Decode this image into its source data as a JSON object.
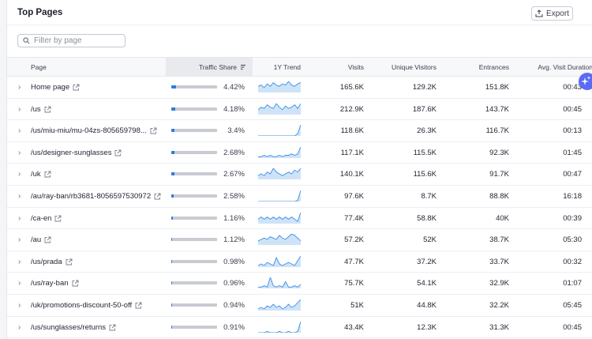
{
  "header": {
    "title": "Top Pages",
    "export_label": "Export"
  },
  "filter": {
    "placeholder": "Filter by page"
  },
  "columns": {
    "page": "Page",
    "traffic_share": "Traffic Share",
    "trend": "1Y Trend",
    "visits": "Visits",
    "unique_visitors": "Unique Visitors",
    "entrances": "Entrances",
    "avg_visit_duration": "Avg. Visit Duration"
  },
  "rows": [
    {
      "page": "Home page",
      "share": "4.42%",
      "share_value": 4.42,
      "visits": "165.6K",
      "unique": "129.2K",
      "entrances": "151.8K",
      "duration": "00:43",
      "trend": [
        5,
        6,
        4,
        7,
        5,
        8,
        6,
        5,
        7,
        6,
        9,
        6,
        5,
        7,
        8
      ]
    },
    {
      "page": "/us",
      "share": "4.18%",
      "share_value": 4.18,
      "visits": "212.9K",
      "unique": "187.6K",
      "entrances": "143.7K",
      "duration": "00:45",
      "trend": [
        4,
        6,
        5,
        8,
        6,
        5,
        9,
        6,
        4,
        7,
        5,
        6,
        8,
        5,
        9
      ]
    },
    {
      "page": "/us/miu-miu/mu-04zs-805659798...",
      "share": "3.4%",
      "share_value": 3.4,
      "visits": "118.6K",
      "unique": "26.3K",
      "entrances": "116.7K",
      "duration": "00:13",
      "trend": [
        0,
        0,
        0,
        0,
        0,
        0,
        0,
        0,
        0,
        0,
        0,
        0,
        0,
        2,
        10
      ]
    },
    {
      "page": "/us/designer-sunglasses",
      "share": "2.68%",
      "share_value": 2.68,
      "visits": "117.1K",
      "unique": "115.5K",
      "entrances": "92.3K",
      "duration": "01:45",
      "trend": [
        1,
        1,
        2,
        1,
        2,
        1,
        1,
        2,
        1,
        2,
        2,
        3,
        2,
        3,
        8
      ]
    },
    {
      "page": "/uk",
      "share": "2.67%",
      "share_value": 2.67,
      "visits": "140.1K",
      "unique": "115.6K",
      "entrances": "91.7K",
      "duration": "00:47",
      "trend": [
        2,
        3,
        2,
        4,
        3,
        6,
        4,
        3,
        2,
        3,
        4,
        3,
        5,
        4,
        6
      ]
    },
    {
      "page": "/au/ray-ban/rb3681-8056597530972",
      "share": "2.58%",
      "share_value": 2.58,
      "visits": "97.6K",
      "unique": "8.7K",
      "entrances": "88.8K",
      "duration": "16:18",
      "trend": [
        0,
        0,
        0,
        0,
        0,
        0,
        0,
        0,
        0,
        0,
        0,
        0,
        0,
        1,
        10
      ]
    },
    {
      "page": "/ca-en",
      "share": "1.16%",
      "share_value": 1.16,
      "visits": "77.4K",
      "unique": "58.8K",
      "entrances": "40K",
      "duration": "00:39",
      "trend": [
        2,
        3,
        2,
        3,
        2,
        3,
        2,
        3,
        2,
        3,
        2,
        3,
        2,
        1,
        5
      ]
    },
    {
      "page": "/au",
      "share": "1.12%",
      "share_value": 1.12,
      "visits": "57.2K",
      "unique": "52K",
      "entrances": "38.7K",
      "duration": "05:30",
      "trend": [
        3,
        4,
        5,
        4,
        6,
        5,
        4,
        7,
        5,
        4,
        6,
        8,
        7,
        5,
        3
      ]
    },
    {
      "page": "/us/prada",
      "share": "0.98%",
      "share_value": 0.98,
      "visits": "47.7K",
      "unique": "37.2K",
      "entrances": "33.7K",
      "duration": "00:32",
      "trend": [
        1,
        2,
        1,
        3,
        2,
        1,
        6,
        2,
        1,
        2,
        3,
        2,
        1,
        4,
        7
      ]
    },
    {
      "page": "/us/ray-ban",
      "share": "0.96%",
      "share_value": 0.96,
      "visits": "75.7K",
      "unique": "54.1K",
      "entrances": "32.9K",
      "duration": "01:07",
      "trend": [
        1,
        1,
        2,
        1,
        8,
        2,
        1,
        2,
        1,
        5,
        1,
        1,
        2,
        1,
        3
      ]
    },
    {
      "page": "/uk/promotions-discount-50-off",
      "share": "0.94%",
      "share_value": 0.94,
      "visits": "51K",
      "unique": "44.8K",
      "entrances": "32.2K",
      "duration": "05:45",
      "trend": [
        1,
        2,
        1,
        3,
        2,
        4,
        2,
        3,
        1,
        2,
        4,
        2,
        3,
        5,
        7
      ]
    },
    {
      "page": "/us/sunglasses/returns",
      "share": "0.91%",
      "share_value": 0.91,
      "visits": "43.4K",
      "unique": "12.3K",
      "entrances": "31.3K",
      "duration": "00:45",
      "trend": [
        0,
        0,
        0,
        1,
        0,
        0,
        0,
        1,
        0,
        0,
        1,
        0,
        0,
        1,
        9
      ]
    }
  ],
  "colors": {
    "accent": "#2d7be0",
    "spark_fill": "#cfe3f8",
    "spark_line": "#3a8ee6"
  }
}
